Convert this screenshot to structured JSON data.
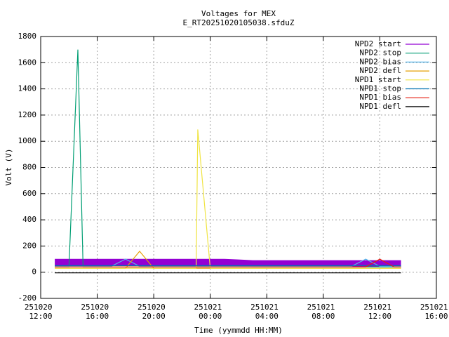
{
  "chart_data": {
    "type": "line",
    "title": "Voltages for MEX",
    "subtitle": "E_RT20251020105038.sfduZ",
    "x_label": "Time (yymmdd HH:MM)",
    "y_label": "Volt (V)",
    "x": [
      "251020 13:00",
      "251020 14:00",
      "251020 14:38",
      "251020 15:00",
      "251020 16:00",
      "251020 17:00",
      "251020 18:00",
      "251020 19:00",
      "251020 20:00",
      "251020 21:00",
      "251020 22:00",
      "251020 23:00",
      "251020 23:07",
      "251021 00:00",
      "251021 01:00",
      "251021 02:00",
      "251021 03:00",
      "251021 04:00",
      "251021 05:00",
      "251021 06:00",
      "251021 07:00",
      "251021 08:00",
      "251021 09:00",
      "251021 10:00",
      "251021 11:00",
      "251021 12:00",
      "251021 13:00",
      "251021 13:30"
    ],
    "series": [
      {
        "name": "NPD2 start",
        "color": "#9400d3",
        "values": [
          75,
          75,
          75,
          75,
          75,
          75,
          75,
          75,
          75,
          75,
          75,
          75,
          75,
          75,
          75,
          70,
          65,
          65,
          65,
          65,
          65,
          65,
          65,
          65,
          65,
          65,
          65,
          65
        ]
      },
      {
        "name": "NPD2 stop",
        "color": "#009e73",
        "values": [
          40,
          40,
          1700,
          40,
          40,
          40,
          40,
          40,
          40,
          40,
          40,
          40,
          40,
          40,
          40,
          40,
          40,
          40,
          40,
          40,
          40,
          40,
          40,
          40,
          40,
          40,
          40,
          40
        ]
      },
      {
        "name": "NPD2 bias",
        "color": "#56b4e9",
        "values": [
          45,
          45,
          45,
          45,
          45,
          45,
          100,
          45,
          45,
          45,
          45,
          45,
          45,
          45,
          45,
          45,
          45,
          45,
          45,
          45,
          45,
          45,
          45,
          45,
          100,
          45,
          45,
          45
        ]
      },
      {
        "name": "NPD2 defl",
        "color": "#e69f00",
        "values": [
          30,
          30,
          30,
          30,
          30,
          30,
          30,
          160,
          30,
          30,
          30,
          30,
          30,
          30,
          30,
          30,
          30,
          30,
          30,
          30,
          30,
          30,
          30,
          30,
          30,
          30,
          30,
          30
        ]
      },
      {
        "name": "NPD1 start",
        "color": "#f0e442",
        "values": [
          30,
          30,
          30,
          30,
          30,
          30,
          30,
          30,
          30,
          30,
          30,
          30,
          1090,
          30,
          30,
          30,
          30,
          30,
          30,
          30,
          30,
          30,
          30,
          30,
          30,
          30,
          30,
          30
        ]
      },
      {
        "name": "NPD1 stop",
        "color": "#0072b2",
        "values": [
          50,
          50,
          50,
          50,
          50,
          50,
          50,
          50,
          50,
          50,
          50,
          50,
          50,
          50,
          50,
          50,
          50,
          50,
          50,
          50,
          50,
          50,
          50,
          50,
          50,
          50,
          50,
          50
        ]
      },
      {
        "name": "NPD1 bias",
        "color": "#e51e10",
        "values": [
          40,
          40,
          40,
          40,
          40,
          40,
          40,
          40,
          40,
          40,
          40,
          40,
          40,
          40,
          40,
          40,
          40,
          40,
          40,
          40,
          40,
          40,
          40,
          40,
          40,
          100,
          40,
          40
        ]
      },
      {
        "name": "NPD1 defl",
        "color": "#000000",
        "values": [
          -5,
          -5,
          -5,
          -5,
          -5,
          -5,
          -5,
          -5,
          -5,
          -5,
          -5,
          -5,
          -5,
          -5,
          -5,
          -5,
          -5,
          -5,
          -5,
          -5,
          -5,
          -5,
          -5,
          -5,
          -5,
          -5,
          -5,
          -5
        ]
      }
    ],
    "xlim": [
      "251020 12:00",
      "251021 16:00"
    ],
    "xticks": [
      "251020 12:00",
      "251020 16:00",
      "251020 20:00",
      "251021 00:00",
      "251021 04:00",
      "251021 08:00",
      "251021 12:00",
      "251021 16:00"
    ],
    "ylim": [
      -200,
      1800
    ],
    "yticks": [
      -200,
      0,
      200,
      400,
      600,
      800,
      1000,
      1200,
      1400,
      1600,
      1800
    ],
    "grid": true,
    "legend": "top-right"
  }
}
